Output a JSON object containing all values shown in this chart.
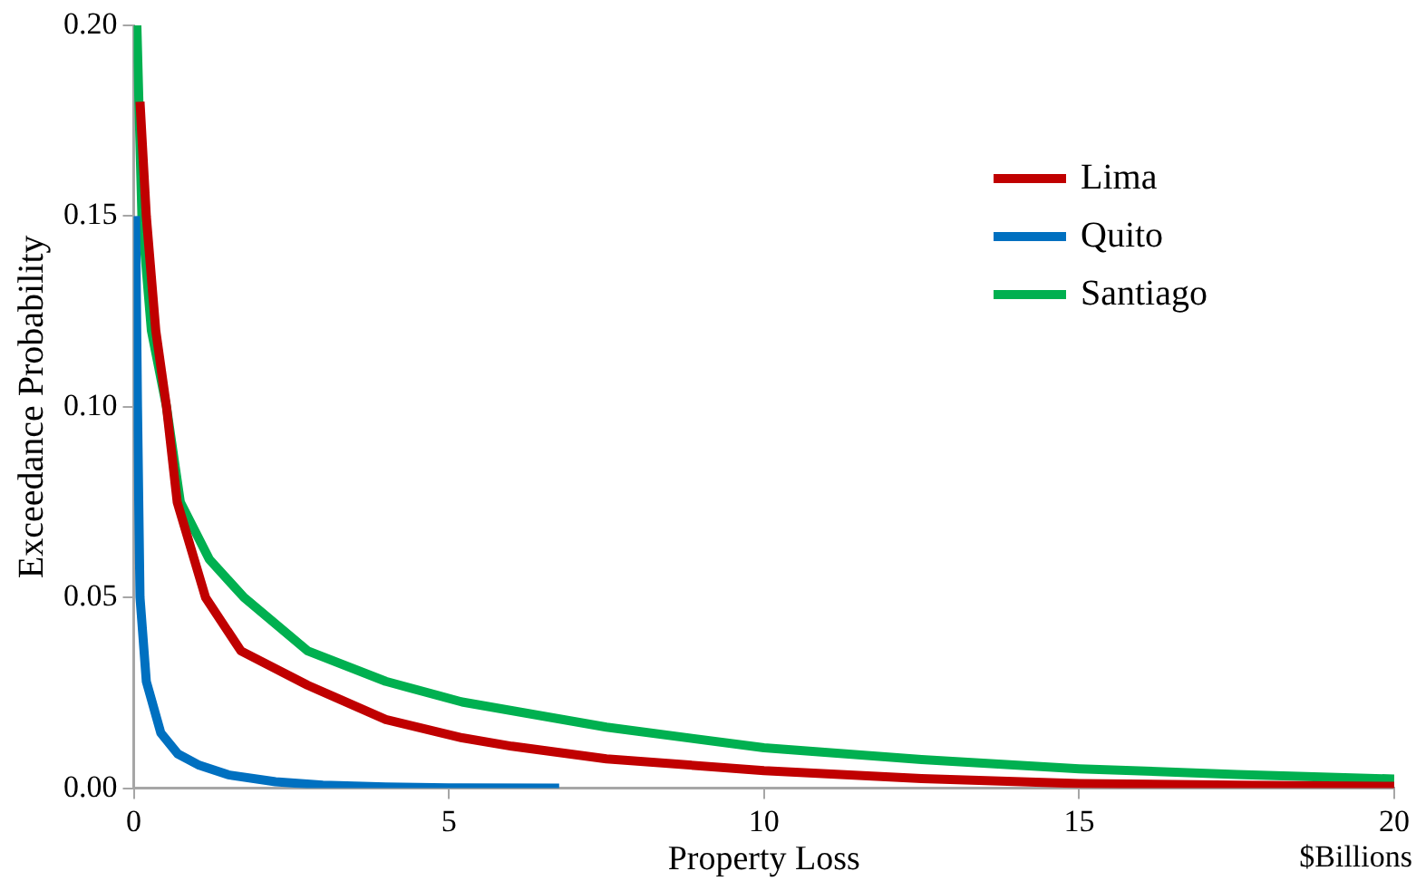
{
  "chart_data": {
    "type": "line",
    "xlabel": "Property Loss",
    "ylabel": "Exceedance Probability",
    "annotations": [
      "$Billions"
    ],
    "xlim": [
      0,
      20
    ],
    "xticks": [
      0,
      5,
      10,
      15,
      20
    ],
    "ylim": [
      0,
      0.2
    ],
    "yticks": [
      {
        "value": 0,
        "label": "0.00"
      },
      {
        "value": 0.05,
        "label": "0.05"
      },
      {
        "value": 0.1,
        "label": "0.10"
      },
      {
        "value": 0.15,
        "label": "0.15"
      },
      {
        "value": 0.2,
        "label": "0.20"
      }
    ],
    "grid": false,
    "legend": "top right",
    "marker": "none",
    "line_style": "solid",
    "series": [
      {
        "name": "Lima",
        "color": "#c00000",
        "x": [
          0.1,
          0.2,
          0.35,
          0.52,
          0.69,
          1.14,
          1.7,
          2.76,
          4,
          5.21,
          6,
          7.5,
          10,
          12.5,
          15,
          17.5,
          20
        ],
        "values": [
          0.18,
          0.15,
          0.12,
          0.1,
          0.075,
          0.05,
          0.036,
          0.027,
          0.018,
          0.0132,
          0.011,
          0.0077,
          0.0046,
          0.0025,
          0.0012,
          0.0008,
          0.0005
        ]
      },
      {
        "name": "Quito",
        "color": "#0070c0",
        "x": [
          0.03,
          0.06,
          0.1,
          0.2,
          0.43,
          0.7,
          1.04,
          1.5,
          2.25,
          3,
          4,
          5,
          6.75
        ],
        "values": [
          0.15,
          0.1,
          0.05,
          0.028,
          0.0145,
          0.009,
          0.006,
          0.0035,
          0.0017,
          0.0008,
          0.0003,
          0.0001,
          0
        ]
      },
      {
        "name": "Santiago",
        "color": "#00b050",
        "x": [
          0.05,
          0.13,
          0.28,
          0.52,
          0.74,
          1.2,
          1.75,
          2.76,
          4,
          5.21,
          7.5,
          10,
          12.5,
          15,
          17.5,
          20
        ],
        "values": [
          0.2,
          0.15,
          0.12,
          0.1,
          0.075,
          0.06,
          0.05,
          0.036,
          0.028,
          0.0226,
          0.016,
          0.0106,
          0.0075,
          0.0051,
          0.0036,
          0.0024
        ]
      }
    ]
  }
}
